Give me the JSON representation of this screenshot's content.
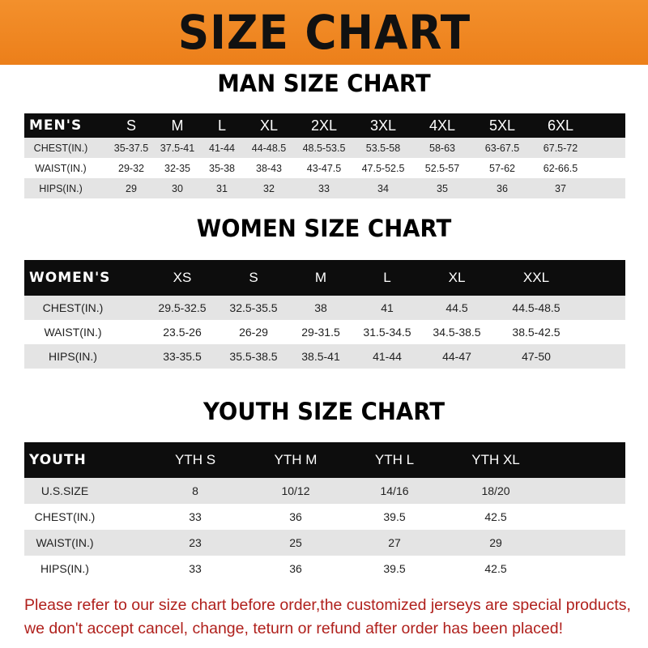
{
  "banner": {
    "title": "SIZE CHART",
    "color": "#ef8722"
  },
  "men": {
    "title": "MAN SIZE CHART",
    "header": [
      "MEN'S",
      "S",
      "M",
      "L",
      "XL",
      "2XL",
      "3XL",
      "4XL",
      "5XL",
      "6XL"
    ],
    "rows": [
      [
        "CHEST(IN.)",
        "35-37.5",
        "37.5-41",
        "41-44",
        "44-48.5",
        "48.5-53.5",
        "53.5-58",
        "58-63",
        "63-67.5",
        "67.5-72"
      ],
      [
        "WAIST(IN.)",
        "29-32",
        "32-35",
        "35-38",
        "38-43",
        "43-47.5",
        "47.5-52.5",
        "52.5-57",
        "57-62",
        "62-66.5"
      ],
      [
        "HIPS(IN.)",
        "29",
        "30",
        "31",
        "32",
        "33",
        "34",
        "35",
        "36",
        "37"
      ]
    ]
  },
  "women": {
    "title": "WOMEN SIZE CHART",
    "header": [
      "WOMEN'S",
      "XS",
      "S",
      "M",
      "L",
      "XL",
      "XXL"
    ],
    "rows": [
      [
        "CHEST(IN.)",
        "29.5-32.5",
        "32.5-35.5",
        "38",
        "41",
        "44.5",
        "44.5-48.5"
      ],
      [
        "WAIST(IN.)",
        "23.5-26",
        "26-29",
        "29-31.5",
        "31.5-34.5",
        "34.5-38.5",
        "38.5-42.5"
      ],
      [
        "HIPS(IN.)",
        "33-35.5",
        "35.5-38.5",
        "38.5-41",
        "41-44",
        "44-47",
        "47-50"
      ]
    ]
  },
  "youth": {
    "title": "YOUTH SIZE CHART",
    "header": [
      "YOUTH",
      "YTH S",
      "YTH M",
      "YTH L",
      "YTH XL"
    ],
    "rows": [
      [
        "U.S.SIZE",
        "8",
        "10/12",
        "14/16",
        "18/20"
      ],
      [
        "CHEST(IN.)",
        "33",
        "36",
        "39.5",
        "42.5"
      ],
      [
        "WAIST(IN.)",
        "23",
        "25",
        "27",
        "29"
      ],
      [
        "HIPS(IN.)",
        "33",
        "36",
        "39.5",
        "42.5"
      ]
    ]
  },
  "notice": {
    "line1": "Please refer to our size chart before order,the customized jerseys are special products,",
    "line2": "we don't accept cancel, change, teturn or refund after order has been placed!",
    "color": "#b0201c"
  }
}
